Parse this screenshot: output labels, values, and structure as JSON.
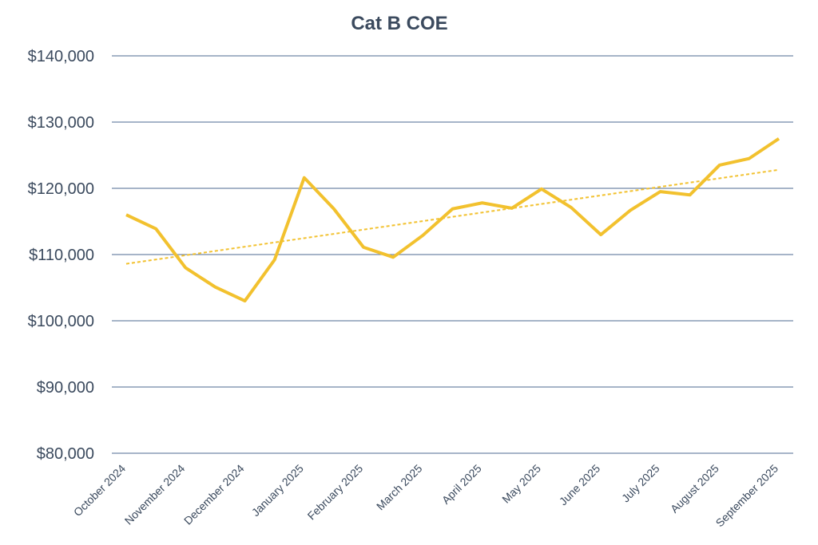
{
  "chart_data": {
    "type": "line",
    "title": "Cat B COE",
    "categories": [
      "October 2024",
      null,
      "November 2024",
      null,
      "December 2024",
      null,
      "January 2025",
      null,
      "February 2025",
      null,
      "March 2025",
      null,
      "April 2025",
      null,
      "May 2025",
      null,
      "June 2025",
      null,
      "July 2025",
      null,
      "August 2025",
      null,
      "September 2025"
    ],
    "series": [
      {
        "name": "Cat B COE",
        "color": "#f2c12e",
        "values": [
          116000,
          113900,
          108000,
          105100,
          103000,
          109200,
          121600,
          116900,
          111100,
          109600,
          112900,
          116900,
          117800,
          117000,
          119900,
          117100,
          113000,
          116700,
          119500,
          119000,
          123500,
          124500,
          127500
        ]
      }
    ],
    "trendline": {
      "color": "#f2c12e",
      "values": [
        108600,
        122800
      ]
    },
    "ylim": [
      80000,
      140000
    ],
    "yticks": [
      {
        "value": 80000,
        "label": "$80,000"
      },
      {
        "value": 90000,
        "label": "$90,000"
      },
      {
        "value": 100000,
        "label": "$100,000"
      },
      {
        "value": 110000,
        "label": "$110,000"
      },
      {
        "value": 120000,
        "label": "$120,000"
      },
      {
        "value": 130000,
        "label": "$130,000"
      },
      {
        "value": 140000,
        "label": "$140,000"
      }
    ],
    "grid": true
  }
}
